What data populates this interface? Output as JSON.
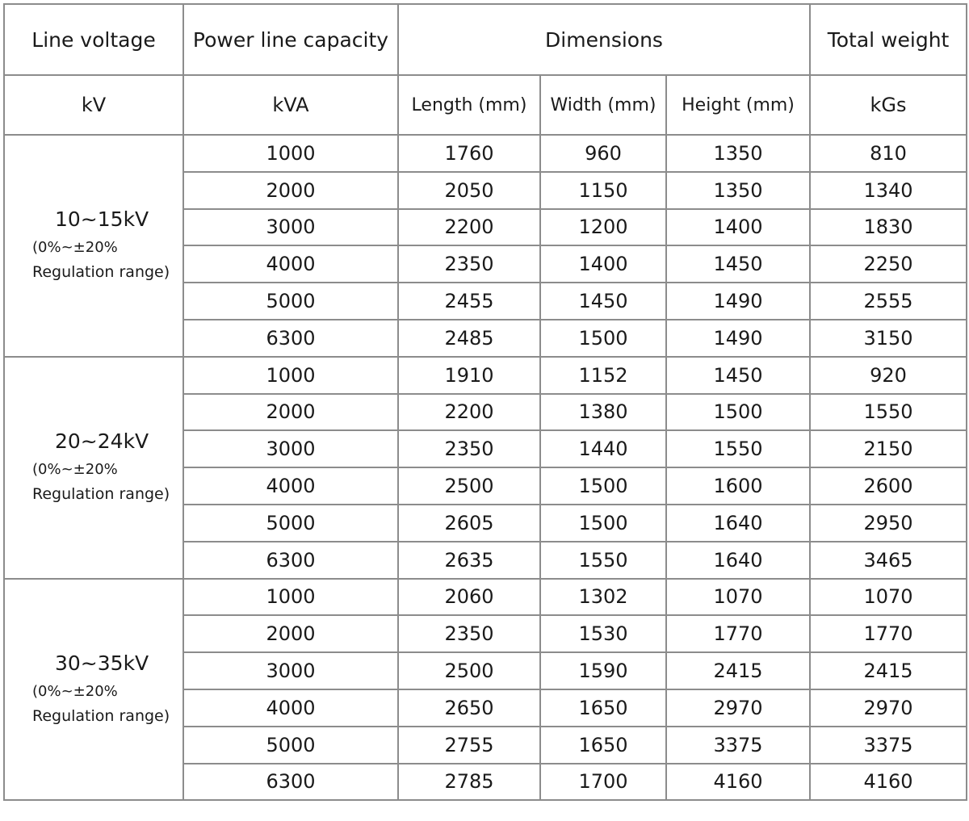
{
  "header": {
    "col1": "Line voltage",
    "col2": "Power line capacity",
    "col3": "Dimensions",
    "col4": "Total weight"
  },
  "units": {
    "col1": "kV",
    "col2": "kVA",
    "length": "Length (mm)",
    "width": "Width (mm)",
    "height": "Height (mm)",
    "weight": "kGs"
  },
  "groups": [
    {
      "voltage": "10~15kV",
      "note1": "(0%~±20%",
      "note2": "Regulation range)",
      "rows": [
        {
          "capacity": "1000",
          "length": "1760",
          "width": "960",
          "height": "1350",
          "weight": "810"
        },
        {
          "capacity": "2000",
          "length": "2050",
          "width": "1150",
          "height": "1350",
          "weight": "1340"
        },
        {
          "capacity": "3000",
          "length": "2200",
          "width": "1200",
          "height": "1400",
          "weight": "1830"
        },
        {
          "capacity": "4000",
          "length": "2350",
          "width": "1400",
          "height": "1450",
          "weight": "2250"
        },
        {
          "capacity": "5000",
          "length": "2455",
          "width": "1450",
          "height": "1490",
          "weight": "2555"
        },
        {
          "capacity": "6300",
          "length": "2485",
          "width": "1500",
          "height": "1490",
          "weight": "3150"
        }
      ]
    },
    {
      "voltage": "20~24kV",
      "note1": "(0%~±20%",
      "note2": "Regulation range)",
      "rows": [
        {
          "capacity": "1000",
          "length": "1910",
          "width": "1152",
          "height": "1450",
          "weight": "920"
        },
        {
          "capacity": "2000",
          "length": "2200",
          "width": "1380",
          "height": "1500",
          "weight": "1550"
        },
        {
          "capacity": "3000",
          "length": "2350",
          "width": "1440",
          "height": "1550",
          "weight": "2150"
        },
        {
          "capacity": "4000",
          "length": "2500",
          "width": "1500",
          "height": "1600",
          "weight": "2600"
        },
        {
          "capacity": "5000",
          "length": "2605",
          "width": "1500",
          "height": "1640",
          "weight": "2950"
        },
        {
          "capacity": "6300",
          "length": "2635",
          "width": "1550",
          "height": "1640",
          "weight": "3465"
        }
      ]
    },
    {
      "voltage": "30~35kV",
      "note1": "(0%~±20%",
      "note2": "Regulation range)",
      "rows": [
        {
          "capacity": "1000",
          "length": "2060",
          "width": "1302",
          "height": "1070",
          "weight": "1070"
        },
        {
          "capacity": "2000",
          "length": "2350",
          "width": "1530",
          "height": "1770",
          "weight": "1770"
        },
        {
          "capacity": "3000",
          "length": "2500",
          "width": "1590",
          "height": "2415",
          "weight": "2415"
        },
        {
          "capacity": "4000",
          "length": "2650",
          "width": "1650",
          "height": "2970",
          "weight": "2970"
        },
        {
          "capacity": "5000",
          "length": "2755",
          "width": "1650",
          "height": "3375",
          "weight": "3375"
        },
        {
          "capacity": "6300",
          "length": "2785",
          "width": "1700",
          "height": "4160",
          "weight": "4160"
        }
      ]
    }
  ]
}
